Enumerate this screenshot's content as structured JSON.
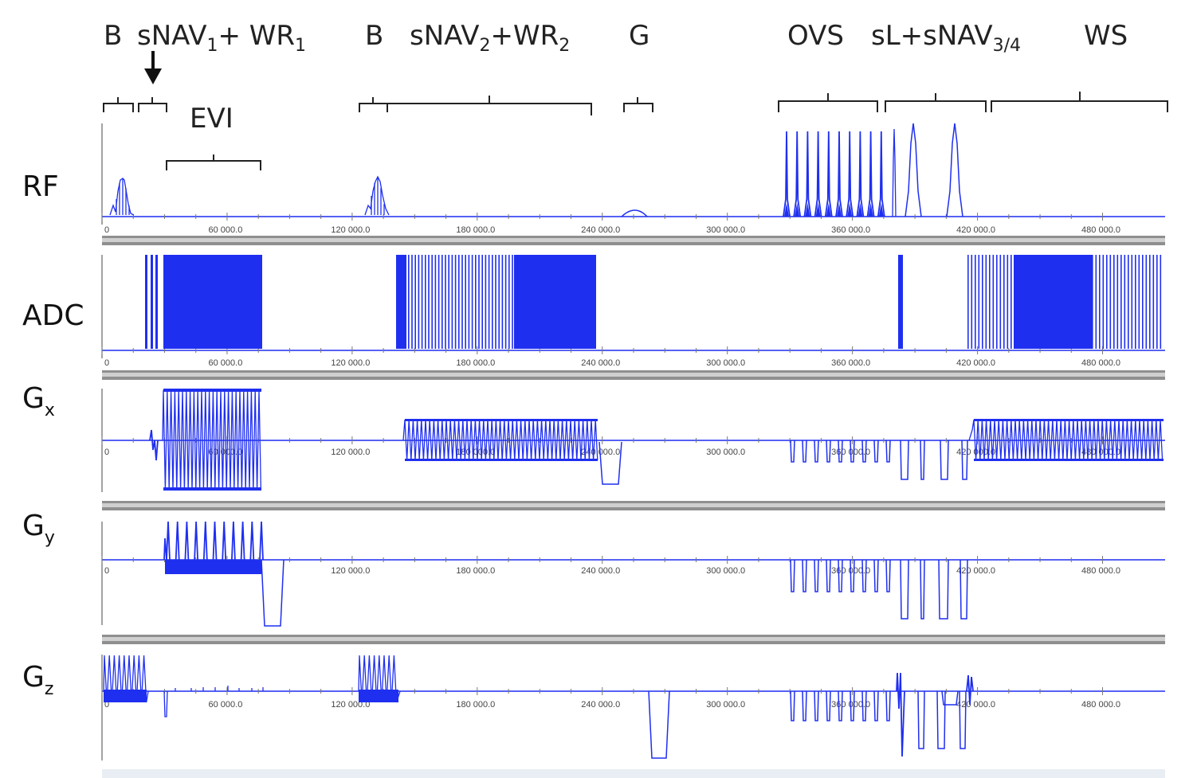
{
  "chart_data": {
    "type": "pulse-sequence-timing-diagram",
    "x_axis": {
      "ticks": [
        "0",
        "60 000.0",
        "120 000.0",
        "180 000.0",
        "240 000.0",
        "300 000.0",
        "360 000.0",
        "420 000.0",
        "480 000.0"
      ],
      "range": [
        0,
        510000
      ]
    },
    "channels": [
      "RF",
      "ADC",
      "G",
      "G",
      "G"
    ],
    "channel_subscripts": [
      "",
      "",
      "x",
      "y",
      "z"
    ],
    "segments": [
      {
        "label": "B",
        "sub": "",
        "suffix": "",
        "start": 0,
        "end": 14000
      },
      {
        "label": "sNAV",
        "sub": "1",
        "suffix": "+ WR",
        "sub2": "1",
        "start": 16000,
        "end": 30000
      },
      {
        "label": "EVI",
        "sub": "",
        "suffix": "",
        "start": 30000,
        "end": 75000
      },
      {
        "label": "B",
        "sub": "",
        "suffix": "",
        "start": 122000,
        "end": 136000
      },
      {
        "label": "sNAV",
        "sub": "2",
        "suffix": "+WR",
        "sub2": "2",
        "start": 137000,
        "end": 235000
      },
      {
        "label": "G",
        "sub": "",
        "suffix": "",
        "start": 250000,
        "end": 265000
      },
      {
        "label": "OVS",
        "sub": "",
        "suffix": "",
        "start": 327000,
        "end": 375000
      },
      {
        "label": "sL+sNAV",
        "sub": "3/4",
        "suffix": "",
        "start": 378000,
        "end": 427000
      },
      {
        "label": "WS",
        "sub": "",
        "suffix": "",
        "start": 429000,
        "end": 510000
      }
    ]
  }
}
